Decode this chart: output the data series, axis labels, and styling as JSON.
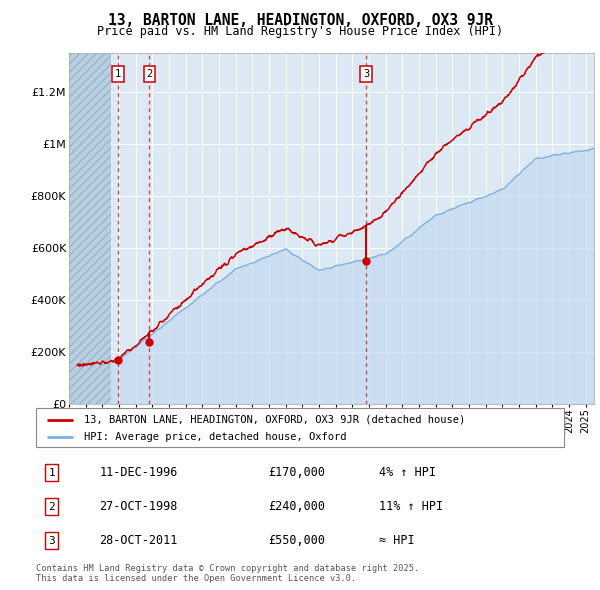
{
  "title": "13, BARTON LANE, HEADINGTON, OXFORD, OX3 9JR",
  "subtitle": "Price paid vs. HM Land Registry's House Price Index (HPI)",
  "ylabel_ticks": [
    "£0",
    "£200K",
    "£400K",
    "£600K",
    "£800K",
    "£1M",
    "£1.2M"
  ],
  "ytick_values": [
    0,
    200000,
    400000,
    600000,
    800000,
    1000000,
    1200000
  ],
  "ylim": [
    0,
    1350000
  ],
  "xlim_start": 1994.0,
  "xlim_end": 2025.5,
  "background_color": "#dce9f5",
  "grid_color": "#ffffff",
  "red_line_color": "#cc0000",
  "blue_line_color": "#7aafe0",
  "blue_fill_color": "#c5daf0",
  "hatch_end": 1996.5,
  "t1_x": 1996.94,
  "t1_y": 170000,
  "t2_x": 1998.82,
  "t2_y": 240000,
  "t3_x": 2011.82,
  "t3_y": 550000,
  "legend_red_label": "13, BARTON LANE, HEADINGTON, OXFORD, OX3 9JR (detached house)",
  "legend_blue_label": "HPI: Average price, detached house, Oxford",
  "table_rows": [
    {
      "num": "1",
      "date": "11-DEC-1996",
      "price": "£170,000",
      "change": "4% ↑ HPI"
    },
    {
      "num": "2",
      "date": "27-OCT-1998",
      "price": "£240,000",
      "change": "11% ↑ HPI"
    },
    {
      "num": "3",
      "date": "28-OCT-2011",
      "price": "£550,000",
      "change": "≈ HPI"
    }
  ],
  "footnote": "Contains HM Land Registry data © Crown copyright and database right 2025.\nThis data is licensed under the Open Government Licence v3.0."
}
